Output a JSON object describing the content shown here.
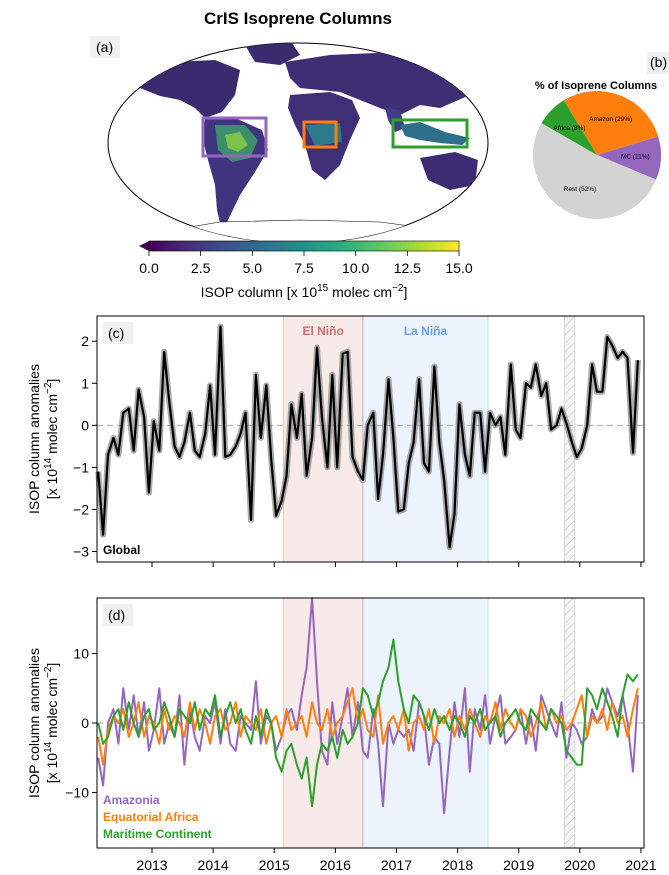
{
  "figure": {
    "title": "CrIS Isoprene Columns",
    "panel_a_label": "(a)",
    "panel_b_label": "(b)",
    "panel_c_label": "(c)",
    "panel_d_label": "(d)"
  },
  "map": {
    "colorbar": {
      "min": 0,
      "max": 15,
      "ticks": [
        "0.0",
        "2.5",
        "5.0",
        "7.5",
        "10.0",
        "12.5",
        "15.0"
      ],
      "label": "ISOP column [x 10",
      "label_exp": "15",
      "label_tail": " molec cm",
      "label_tail_exp": "−2",
      "label_end": "]",
      "colors": [
        "#440154",
        "#472d7b",
        "#3b528b",
        "#2c728e",
        "#21918c",
        "#28ae80",
        "#5ec962",
        "#addc30",
        "#fde725"
      ]
    },
    "regions": [
      {
        "name": "Amazonia",
        "color": "#9467bd"
      },
      {
        "name": "Equatorial Africa",
        "color": "#ff7f0e"
      },
      {
        "name": "Maritime Continent",
        "color": "#2ca02c"
      }
    ]
  },
  "pie": {
    "title": "% of Isoprene Columns",
    "slices": [
      {
        "label": "Amazon (29%)",
        "value": 29,
        "color": "#ff7f0e"
      },
      {
        "label": "MC (11%)",
        "value": 11,
        "color": "#9467bd"
      },
      {
        "label": "Rest (52%)",
        "value": 52,
        "color": "#d3d3d3"
      },
      {
        "label": "Africa (8%)",
        "value": 8,
        "color": "#2ca02c"
      }
    ]
  },
  "events": {
    "el_nino": {
      "label": "El Niño",
      "start": 2015.15,
      "end": 2016.45,
      "color": "#c0504d"
    },
    "la_nina": {
      "label": "La Niña",
      "start": 2016.45,
      "end": 2018.5,
      "color": "#6d9eeb"
    },
    "gap": {
      "start": 2019.75,
      "end": 2019.92
    }
  },
  "chart_data": [
    {
      "type": "line",
      "panel": "c",
      "xlabel": "",
      "ylabel": "ISOP column anomalies",
      "ylabel2": "[x 10",
      "ylabel2_exp": "14",
      "ylabel2_tail": " molec cm",
      "ylabel2_tail_exp": "−2",
      "ylabel2_end": "]",
      "ylim": [
        -3.25,
        2.6
      ],
      "xlim": [
        2012.1,
        2021.05
      ],
      "yticks": [
        -3,
        -2,
        -1,
        0,
        1,
        2
      ],
      "series": [
        {
          "name": "Global",
          "color": "#000000",
          "x": [
            2012.12,
            2012.2,
            2012.28,
            2012.37,
            2012.45,
            2012.53,
            2012.62,
            2012.7,
            2012.78,
            2012.87,
            2012.95,
            2013.03,
            2013.12,
            2013.2,
            2013.28,
            2013.37,
            2013.45,
            2013.53,
            2013.62,
            2013.7,
            2013.78,
            2013.87,
            2013.95,
            2014.03,
            2014.12,
            2014.2,
            2014.28,
            2014.37,
            2014.45,
            2014.53,
            2014.62,
            2014.7,
            2014.78,
            2014.87,
            2014.95,
            2015.03,
            2015.12,
            2015.2,
            2015.28,
            2015.37,
            2015.45,
            2015.53,
            2015.62,
            2015.7,
            2015.78,
            2015.87,
            2015.95,
            2016.03,
            2016.12,
            2016.2,
            2016.28,
            2016.37,
            2016.45,
            2016.53,
            2016.62,
            2016.7,
            2016.78,
            2016.87,
            2016.95,
            2017.03,
            2017.12,
            2017.2,
            2017.28,
            2017.37,
            2017.45,
            2017.53,
            2017.62,
            2017.7,
            2017.78,
            2017.87,
            2017.95,
            2018.03,
            2018.12,
            2018.2,
            2018.28,
            2018.37,
            2018.45,
            2018.53,
            2018.62,
            2018.7,
            2018.78,
            2018.87,
            2018.95,
            2019.03,
            2019.12,
            2019.2,
            2019.28,
            2019.37,
            2019.45,
            2019.53,
            2019.62,
            2019.7,
            2019.78,
            2019.87,
            2019.95,
            2020.03,
            2020.12,
            2020.2,
            2020.28,
            2020.37,
            2020.45,
            2020.53,
            2020.62,
            2020.7,
            2020.78,
            2020.87,
            2020.95
          ],
          "y": [
            -1.1,
            -2.6,
            -0.7,
            -0.3,
            -0.7,
            0.3,
            0.4,
            -0.6,
            0.85,
            0.2,
            -1.6,
            0.1,
            -0.6,
            1.75,
            0.6,
            -0.5,
            -0.75,
            -0.4,
            0.3,
            -0.6,
            -0.75,
            -0.2,
            0.95,
            -0.7,
            2.35,
            -0.75,
            -0.7,
            -0.5,
            -0.2,
            0.3,
            -2.25,
            1.2,
            -0.3,
            0.95,
            -0.8,
            -2.15,
            -1.8,
            -1.2,
            0.5,
            -0.3,
            0.75,
            -1.2,
            -0.3,
            1.85,
            0.2,
            -1.0,
            1.2,
            -1.0,
            1.7,
            1.75,
            -0.75,
            -1.1,
            -1.3,
            0.0,
            0.3,
            -1.75,
            -0.7,
            1.1,
            -0.3,
            -2.05,
            -2.0,
            -0.9,
            -0.4,
            1.1,
            -0.9,
            -1.1,
            1.4,
            -0.4,
            -1.3,
            -2.9,
            -2.1,
            0.5,
            -0.7,
            -1.2,
            0.3,
            0.3,
            -1.1,
            0.3,
            0.0,
            0.2,
            -0.7,
            1.45,
            -0.1,
            -0.3,
            1.0,
            0.9,
            1.45,
            0.7,
            1.0,
            -0.1,
            0.0,
            0.4,
            0.05,
            -0.4,
            -0.75,
            -0.55,
            0.0,
            1.45,
            0.8,
            0.8,
            2.1,
            1.9,
            1.6,
            1.75,
            1.6,
            -0.65,
            1.55
          ]
        }
      ]
    },
    {
      "type": "line",
      "panel": "d",
      "xlabel": "",
      "ylabel": "ISOP column anomalies",
      "ylim": [
        -18,
        18
      ],
      "xlim": [
        2012.1,
        2021.05
      ],
      "yticks": [
        -10,
        0,
        10
      ],
      "xticks": [
        "2013",
        "2014",
        "2015",
        "2016",
        "2017",
        "2018",
        "2019",
        "2020",
        "2021"
      ],
      "series": [
        {
          "name": "Amazonia",
          "color": "#9467bd",
          "x": [
            2012.12,
            2012.2,
            2012.28,
            2012.37,
            2012.45,
            2012.53,
            2012.62,
            2012.7,
            2012.78,
            2012.87,
            2012.95,
            2013.03,
            2013.12,
            2013.2,
            2013.28,
            2013.37,
            2013.45,
            2013.53,
            2013.62,
            2013.7,
            2013.78,
            2013.87,
            2013.95,
            2014.03,
            2014.12,
            2014.2,
            2014.28,
            2014.37,
            2014.45,
            2014.53,
            2014.62,
            2014.7,
            2014.78,
            2014.87,
            2014.95,
            2015.03,
            2015.12,
            2015.2,
            2015.28,
            2015.37,
            2015.45,
            2015.53,
            2015.62,
            2015.7,
            2015.78,
            2015.87,
            2015.95,
            2016.03,
            2016.12,
            2016.2,
            2016.28,
            2016.37,
            2016.45,
            2016.53,
            2016.62,
            2016.7,
            2016.78,
            2016.87,
            2016.95,
            2017.03,
            2017.12,
            2017.2,
            2017.28,
            2017.37,
            2017.45,
            2017.53,
            2017.62,
            2017.7,
            2017.78,
            2017.87,
            2017.95,
            2018.03,
            2018.12,
            2018.2,
            2018.28,
            2018.37,
            2018.45,
            2018.53,
            2018.62,
            2018.7,
            2018.78,
            2018.87,
            2018.95,
            2019.03,
            2019.12,
            2019.2,
            2019.28,
            2019.37,
            2019.45,
            2019.53,
            2019.62,
            2019.7,
            2019.78,
            2019.87,
            2019.95,
            2020.03,
            2020.12,
            2020.2,
            2020.28,
            2020.37,
            2020.45,
            2020.53,
            2020.62,
            2020.7,
            2020.78,
            2020.87,
            2020.95
          ],
          "y": [
            -5,
            -9,
            0,
            2,
            -3,
            5,
            -1,
            4,
            -2,
            3,
            -4,
            -1,
            5,
            -3,
            0,
            -2,
            4,
            -6,
            2,
            -2,
            -4,
            1,
            0,
            3,
            -3,
            2,
            -3,
            -4,
            1,
            0,
            -1,
            6,
            -3,
            1,
            0,
            -4,
            -2,
            1,
            2,
            -1,
            4,
            8,
            18,
            6,
            -4,
            -6,
            3,
            -3,
            1,
            5,
            -2,
            3,
            -4,
            -5,
            2,
            -3,
            -12,
            0,
            -3,
            -1,
            -2,
            -1,
            -4,
            3,
            1,
            -6,
            -2,
            -3,
            -13,
            -4,
            3,
            -2,
            5,
            -7,
            2,
            -1,
            4,
            -3,
            1,
            4,
            -3,
            -2,
            -1,
            2,
            -3,
            1,
            -4,
            4,
            2,
            0,
            -2,
            3,
            -5,
            0,
            -1,
            -3,
            -2,
            2,
            0,
            1,
            5,
            3,
            1,
            4,
            0,
            -7,
            4
          ]
        },
        {
          "name": "Equatorial Africa",
          "color": "#ff7f0e",
          "x": [
            2012.12,
            2012.2,
            2012.28,
            2012.37,
            2012.45,
            2012.53,
            2012.62,
            2012.7,
            2012.78,
            2012.87,
            2012.95,
            2013.03,
            2013.12,
            2013.2,
            2013.28,
            2013.37,
            2013.45,
            2013.53,
            2013.62,
            2013.7,
            2013.78,
            2013.87,
            2013.95,
            2014.03,
            2014.12,
            2014.2,
            2014.28,
            2014.37,
            2014.45,
            2014.53,
            2014.62,
            2014.7,
            2014.78,
            2014.87,
            2014.95,
            2015.03,
            2015.12,
            2015.2,
            2015.28,
            2015.37,
            2015.45,
            2015.53,
            2015.62,
            2015.7,
            2015.78,
            2015.87,
            2015.95,
            2016.03,
            2016.12,
            2016.2,
            2016.28,
            2016.37,
            2016.45,
            2016.53,
            2016.62,
            2016.7,
            2016.78,
            2016.87,
            2016.95,
            2017.03,
            2017.12,
            2017.2,
            2017.28,
            2017.37,
            2017.45,
            2017.53,
            2017.62,
            2017.7,
            2017.78,
            2017.87,
            2017.95,
            2018.03,
            2018.12,
            2018.2,
            2018.28,
            2018.37,
            2018.45,
            2018.53,
            2018.62,
            2018.7,
            2018.78,
            2018.87,
            2018.95,
            2019.03,
            2019.12,
            2019.2,
            2019.28,
            2019.37,
            2019.45,
            2019.53,
            2019.62,
            2019.7,
            2019.78,
            2019.87,
            2019.95,
            2020.03,
            2020.12,
            2020.2,
            2020.28,
            2020.37,
            2020.45,
            2020.53,
            2020.62,
            2020.7,
            2020.78,
            2020.87,
            2020.95
          ],
          "y": [
            -2,
            -6,
            -1,
            1,
            0,
            2,
            -2,
            0,
            3,
            -2,
            1,
            0,
            -3,
            2,
            -1,
            1,
            0,
            -2,
            3,
            -1,
            2,
            0,
            -3,
            1,
            2,
            -1,
            0,
            3,
            -2,
            1,
            0,
            -1,
            2,
            -3,
            0,
            1,
            -2,
            2,
            -1,
            0,
            1,
            -2,
            3,
            0,
            -1,
            2,
            -2,
            0,
            1,
            3,
            5,
            0,
            2,
            -1,
            -2,
            4,
            -3,
            0,
            1,
            -1,
            2,
            -4,
            0,
            1,
            -1,
            2,
            -3,
            1,
            0,
            2,
            -2,
            1,
            -1,
            2,
            0,
            -2,
            1,
            0,
            3,
            -1,
            2,
            0,
            -1,
            2,
            1,
            -2,
            0,
            3,
            -1,
            2,
            0,
            1,
            -1,
            0,
            2,
            4,
            -2,
            1,
            0,
            2,
            -1,
            3,
            0,
            1,
            -2,
            2,
            5
          ]
        },
        {
          "name": "Maritime Continent",
          "color": "#2ca02c",
          "x": [
            2012.12,
            2012.2,
            2012.28,
            2012.37,
            2012.45,
            2012.53,
            2012.62,
            2012.7,
            2012.78,
            2012.87,
            2012.95,
            2013.03,
            2013.12,
            2013.2,
            2013.28,
            2013.37,
            2013.45,
            2013.53,
            2013.62,
            2013.7,
            2013.78,
            2013.87,
            2013.95,
            2014.03,
            2014.12,
            2014.2,
            2014.28,
            2014.37,
            2014.45,
            2014.53,
            2014.62,
            2014.7,
            2014.78,
            2014.87,
            2014.95,
            2015.03,
            2015.12,
            2015.2,
            2015.28,
            2015.37,
            2015.45,
            2015.53,
            2015.62,
            2015.7,
            2015.78,
            2015.87,
            2015.95,
            2016.03,
            2016.12,
            2016.2,
            2016.28,
            2016.37,
            2016.45,
            2016.53,
            2016.62,
            2016.7,
            2016.78,
            2016.87,
            2016.95,
            2017.03,
            2017.12,
            2017.2,
            2017.28,
            2017.37,
            2017.45,
            2017.53,
            2017.62,
            2017.7,
            2017.78,
            2017.87,
            2017.95,
            2018.03,
            2018.12,
            2018.2,
            2018.28,
            2018.37,
            2018.45,
            2018.53,
            2018.62,
            2018.7,
            2018.78,
            2018.87,
            2018.95,
            2019.03,
            2019.12,
            2019.2,
            2019.28,
            2019.37,
            2019.45,
            2019.53,
            2019.62,
            2019.7,
            2019.78,
            2019.87,
            2019.95,
            2020.03,
            2020.12,
            2020.2,
            2020.28,
            2020.37,
            2020.45,
            2020.53,
            2020.62,
            2020.7,
            2020.78,
            2020.87,
            2020.95
          ],
          "y": [
            0,
            -3,
            -2,
            1,
            2,
            -1,
            3,
            0,
            -2,
            1,
            2,
            -1,
            0,
            3,
            1,
            -2,
            2,
            1,
            0,
            3,
            -1,
            2,
            1,
            4,
            -2,
            1,
            3,
            0,
            2,
            -1,
            -3,
            1,
            -2,
            2,
            0,
            -5,
            -7,
            -4,
            -3,
            -6,
            -8,
            -5,
            -12,
            -6,
            -3,
            -4,
            -2,
            -5,
            -1,
            -3,
            -2,
            0,
            5,
            4,
            1,
            3,
            6,
            8,
            12,
            6,
            2,
            0,
            4,
            3,
            1,
            -1,
            2,
            0,
            1,
            -1,
            1,
            0,
            -2,
            1,
            0,
            2,
            -1,
            0,
            1,
            -2,
            0,
            1,
            2,
            0,
            -1,
            2,
            1,
            0,
            -1,
            2,
            1,
            0,
            -4,
            -5,
            -6,
            -6,
            5,
            4,
            2,
            5,
            3,
            1,
            -2,
            4,
            7,
            6,
            7
          ]
        }
      ]
    }
  ]
}
